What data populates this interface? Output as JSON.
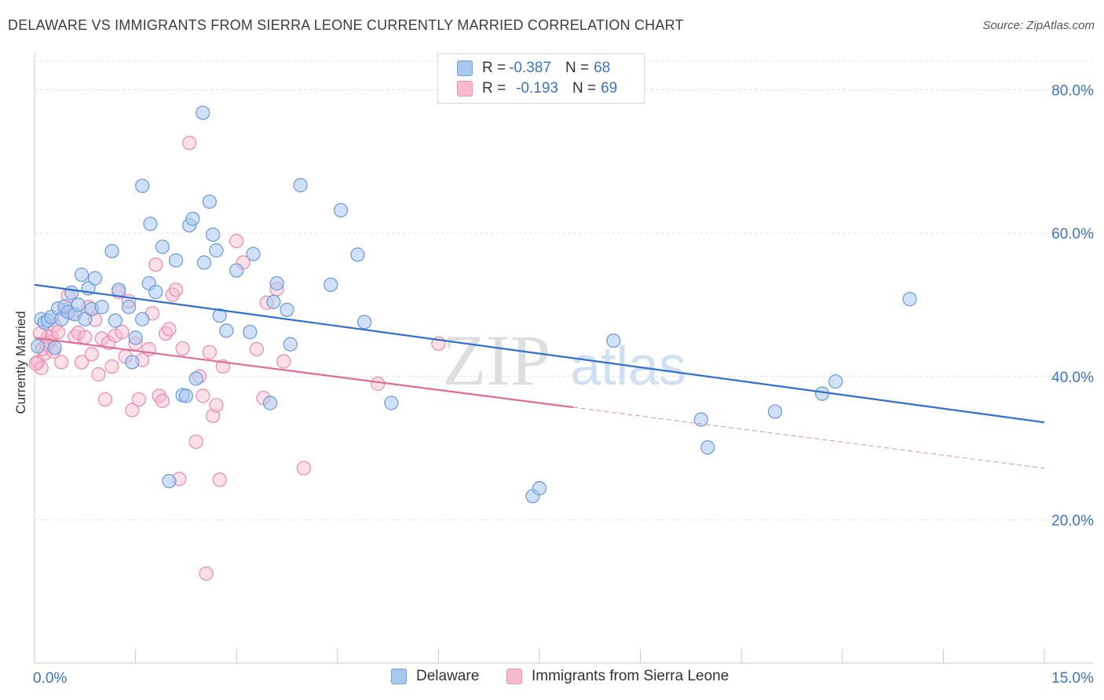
{
  "title": "DELAWARE VS IMMIGRANTS FROM SIERRA LEONE CURRENTLY MARRIED CORRELATION CHART",
  "source": "Source: ZipAtlas.com",
  "watermark": {
    "zip": "ZIP",
    "atlas": "atlas"
  },
  "legend": {
    "delaware": {
      "r_label": "R =",
      "r_value": "-0.387",
      "n_label": "N =",
      "n_value": "68"
    },
    "sierra": {
      "r_label": "R =",
      "r_value": "-0.193",
      "n_label": "N =",
      "n_value": "69"
    }
  },
  "bottom_legend": {
    "delaware": "Delaware",
    "sierra": "Immigrants from Sierra Leone"
  },
  "colors": {
    "delaware_fill": "#a9c8f0",
    "delaware_stroke": "#6f9fdc",
    "delaware_line": "#2f6fd0",
    "sierra_fill": "#f7b9ce",
    "sierra_stroke": "#ec8fb0",
    "sierra_line": "#e06b96",
    "tick_label": "#3a73c4",
    "grid": "#e4e4e4"
  },
  "chart_data": {
    "type": "scatter",
    "title": "DELAWARE VS IMMIGRANTS FROM SIERRA LEONE CURRENTLY MARRIED CORRELATION CHART",
    "xlabel": "",
    "ylabel": "Currently Married",
    "xlim": [
      0,
      15
    ],
    "ylim": [
      0,
      84
    ],
    "x_tick_labels": [
      {
        "value": 0,
        "label": "0.0%"
      },
      {
        "value": 15,
        "label": "15.0%"
      }
    ],
    "y_ticks": [
      {
        "value": 20,
        "label": "20.0%"
      },
      {
        "value": 40,
        "label": "40.0%"
      },
      {
        "value": 60,
        "label": "60.0%"
      },
      {
        "value": 80,
        "label": "80.0%"
      }
    ],
    "series": [
      {
        "name": "Delaware",
        "r": -0.387,
        "n": 68,
        "trend": {
          "x": [
            0,
            15
          ],
          "y": [
            52.8,
            33.6
          ]
        },
        "points": [
          [
            0.05,
            44.2
          ],
          [
            0.1,
            48.0
          ],
          [
            0.15,
            47.5
          ],
          [
            0.2,
            47.8
          ],
          [
            0.25,
            48.3
          ],
          [
            0.3,
            44.0
          ],
          [
            0.35,
            49.5
          ],
          [
            0.4,
            48.0
          ],
          [
            0.45,
            49.8
          ],
          [
            0.5,
            49.0
          ],
          [
            0.55,
            51.7
          ],
          [
            0.6,
            48.7
          ],
          [
            0.65,
            50.0
          ],
          [
            0.7,
            54.2
          ],
          [
            0.75,
            48.0
          ],
          [
            0.8,
            52.3
          ],
          [
            0.85,
            49.4
          ],
          [
            0.9,
            53.7
          ],
          [
            1.0,
            49.7
          ],
          [
            1.15,
            57.5
          ],
          [
            1.2,
            47.8
          ],
          [
            1.25,
            52.1
          ],
          [
            1.4,
            49.7
          ],
          [
            1.45,
            42.0
          ],
          [
            1.5,
            45.4
          ],
          [
            1.6,
            48.0
          ],
          [
            1.6,
            66.6
          ],
          [
            1.7,
            53.0
          ],
          [
            1.72,
            61.3
          ],
          [
            1.8,
            51.8
          ],
          [
            1.9,
            58.1
          ],
          [
            2.0,
            25.4
          ],
          [
            2.1,
            56.2
          ],
          [
            2.2,
            37.4
          ],
          [
            2.25,
            37.3
          ],
          [
            2.3,
            61.1
          ],
          [
            2.35,
            62.0
          ],
          [
            2.4,
            39.7
          ],
          [
            2.5,
            76.8
          ],
          [
            2.52,
            55.9
          ],
          [
            2.6,
            64.4
          ],
          [
            2.65,
            59.8
          ],
          [
            2.7,
            57.6
          ],
          [
            2.75,
            48.5
          ],
          [
            2.85,
            46.4
          ],
          [
            3.0,
            54.8
          ],
          [
            3.2,
            46.2
          ],
          [
            3.25,
            57.1
          ],
          [
            3.5,
            36.3
          ],
          [
            3.55,
            50.4
          ],
          [
            3.6,
            53.0
          ],
          [
            3.75,
            49.3
          ],
          [
            3.8,
            44.5
          ],
          [
            3.95,
            66.7
          ],
          [
            4.4,
            52.8
          ],
          [
            4.55,
            63.2
          ],
          [
            4.8,
            57.0
          ],
          [
            4.9,
            47.6
          ],
          [
            5.3,
            36.3
          ],
          [
            7.4,
            23.3
          ],
          [
            7.5,
            24.4
          ],
          [
            8.6,
            45.0
          ],
          [
            9.9,
            34.0
          ],
          [
            10.0,
            30.1
          ],
          [
            11.0,
            35.1
          ],
          [
            11.7,
            37.6
          ],
          [
            11.9,
            39.3
          ],
          [
            13.0,
            50.8
          ]
        ]
      },
      {
        "name": "Immigrants from Sierra Leone",
        "r": -0.193,
        "n": 69,
        "trend": {
          "x": [
            0,
            8
          ],
          "y": [
            45.4,
            35.7
          ]
        },
        "trend_ext": {
          "x": [
            8,
            15
          ],
          "y": [
            35.7,
            27.2
          ]
        },
        "points": [
          [
            0.05,
            42.0
          ],
          [
            0.1,
            41.2
          ],
          [
            0.15,
            43.2
          ],
          [
            0.2,
            45.5
          ],
          [
            0.22,
            44.8
          ],
          [
            0.25,
            45.6
          ],
          [
            0.3,
            47.1
          ],
          [
            0.35,
            46.2
          ],
          [
            0.4,
            42.0
          ],
          [
            0.45,
            49.3
          ],
          [
            0.5,
            51.3
          ],
          [
            0.55,
            48.8
          ],
          [
            0.6,
            45.6
          ],
          [
            0.65,
            46.1
          ],
          [
            0.7,
            42.0
          ],
          [
            0.75,
            45.5
          ],
          [
            0.8,
            49.7
          ],
          [
            0.85,
            43.1
          ],
          [
            0.9,
            47.9
          ],
          [
            0.95,
            40.3
          ],
          [
            1.0,
            45.3
          ],
          [
            1.05,
            36.8
          ],
          [
            1.1,
            44.7
          ],
          [
            1.15,
            41.4
          ],
          [
            1.2,
            45.7
          ],
          [
            1.25,
            51.8
          ],
          [
            1.3,
            46.2
          ],
          [
            1.35,
            42.8
          ],
          [
            1.4,
            50.5
          ],
          [
            1.45,
            35.3
          ],
          [
            1.5,
            44.6
          ],
          [
            1.55,
            36.8
          ],
          [
            1.6,
            42.3
          ],
          [
            1.7,
            43.8
          ],
          [
            1.75,
            48.8
          ],
          [
            1.8,
            55.6
          ],
          [
            1.85,
            37.3
          ],
          [
            1.9,
            36.6
          ],
          [
            1.95,
            46.0
          ],
          [
            2.0,
            46.6
          ],
          [
            2.05,
            51.4
          ],
          [
            2.1,
            52.1
          ],
          [
            2.15,
            25.7
          ],
          [
            2.2,
            43.9
          ],
          [
            2.3,
            72.6
          ],
          [
            2.4,
            30.9
          ],
          [
            2.45,
            40.0
          ],
          [
            2.5,
            37.3
          ],
          [
            2.55,
            12.5
          ],
          [
            2.6,
            43.4
          ],
          [
            2.65,
            34.5
          ],
          [
            2.7,
            36.0
          ],
          [
            2.75,
            25.6
          ],
          [
            2.8,
            41.4
          ],
          [
            3.0,
            58.9
          ],
          [
            3.1,
            55.9
          ],
          [
            3.3,
            43.8
          ],
          [
            3.4,
            37.0
          ],
          [
            3.45,
            50.3
          ],
          [
            3.6,
            52.2
          ],
          [
            3.7,
            42.1
          ],
          [
            4.0,
            27.2
          ],
          [
            5.1,
            39.0
          ],
          [
            6.0,
            44.6
          ],
          [
            0.02,
            41.8
          ],
          [
            0.08,
            46.0
          ],
          [
            0.12,
            43.9
          ],
          [
            0.18,
            44.5
          ],
          [
            0.28,
            43.5
          ]
        ]
      }
    ]
  }
}
